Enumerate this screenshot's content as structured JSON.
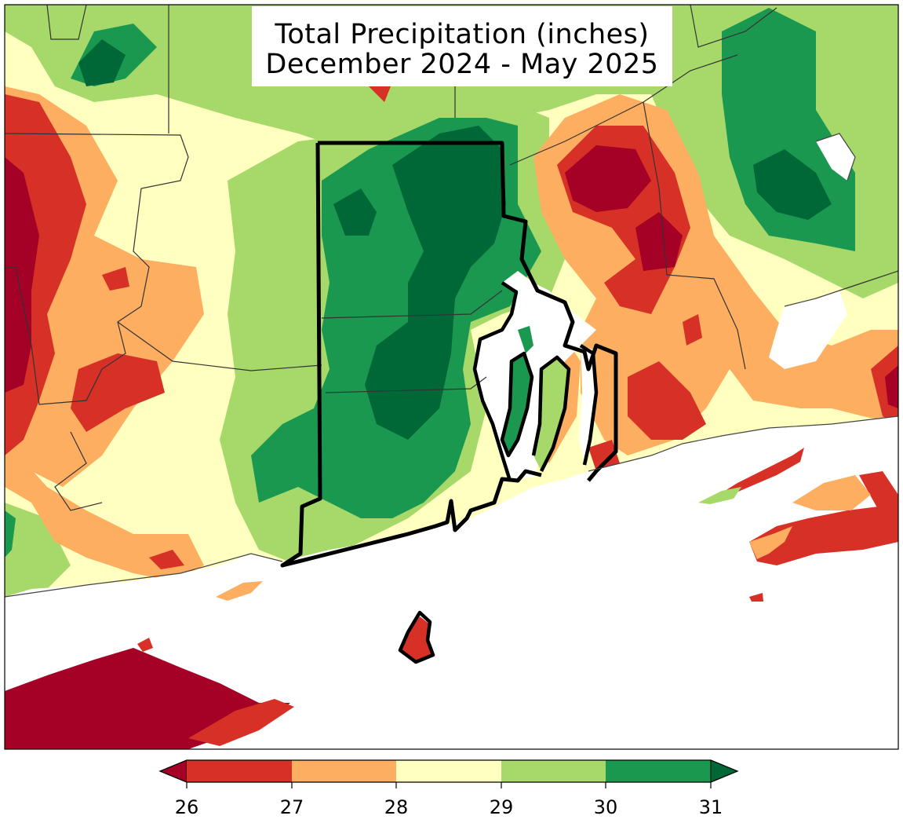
{
  "title": {
    "line1": "Total Precipitation (inches)",
    "line2": "December 2024 - May 2025"
  },
  "colors": {
    "below_26": "#a50026",
    "26_27": "#d73027",
    "27_28": "#fdae61",
    "28_29": "#ffffbf",
    "29_30": "#a6d96a",
    "30_31": "#1a9850",
    "above_31": "#006837",
    "water": "#ffffff",
    "state_border": "#000000"
  },
  "colorbar": {
    "levels": [
      26,
      27,
      28,
      29,
      30,
      31
    ],
    "tick_labels": [
      "26",
      "27",
      "28",
      "29",
      "30",
      "31"
    ],
    "extend": "both"
  }
}
